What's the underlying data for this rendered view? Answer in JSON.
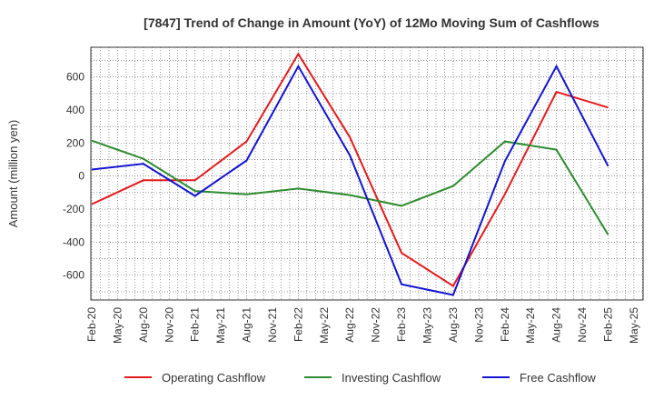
{
  "chart_data": {
    "type": "line",
    "title": "[7847]  Trend of Change in Amount (YoY) of 12Mo Moving Sum of Cashflows",
    "xlabel": "",
    "ylabel": "Amount (million yen)",
    "ylim": [
      -750,
      780
    ],
    "yticks": [
      600,
      400,
      200,
      0,
      -200,
      -400,
      -600
    ],
    "categories": [
      "Feb-20",
      "May-20",
      "Aug-20",
      "Nov-20",
      "Feb-21",
      "May-21",
      "Aug-21",
      "Nov-21",
      "Feb-22",
      "May-22",
      "Aug-22",
      "Nov-22",
      "Feb-23",
      "May-23",
      "Aug-23",
      "Nov-23",
      "Feb-24",
      "May-24",
      "Aug-24",
      "Nov-24",
      "Feb-25",
      "May-25"
    ],
    "series": [
      {
        "name": "Operating Cashflow",
        "color": "#e41a1c",
        "values": [
          -170,
          null,
          -25,
          null,
          -25,
          null,
          210,
          null,
          740,
          null,
          235,
          null,
          -465,
          null,
          -665,
          null,
          -110,
          null,
          510,
          null,
          415,
          null
        ]
      },
      {
        "name": "Investing Cashflow",
        "color": "#2e8b2e",
        "values": [
          215,
          null,
          105,
          null,
          -90,
          null,
          -110,
          null,
          -75,
          null,
          -115,
          null,
          -180,
          null,
          -60,
          null,
          210,
          null,
          160,
          null,
          -355,
          null
        ]
      },
      {
        "name": "Free Cashflow",
        "color": "#1414d2",
        "values": [
          40,
          null,
          75,
          null,
          -120,
          null,
          95,
          null,
          665,
          null,
          125,
          null,
          -655,
          null,
          -720,
          null,
          90,
          null,
          665,
          null,
          60,
          null
        ]
      }
    ],
    "grid": true,
    "legend_position": "bottom"
  }
}
